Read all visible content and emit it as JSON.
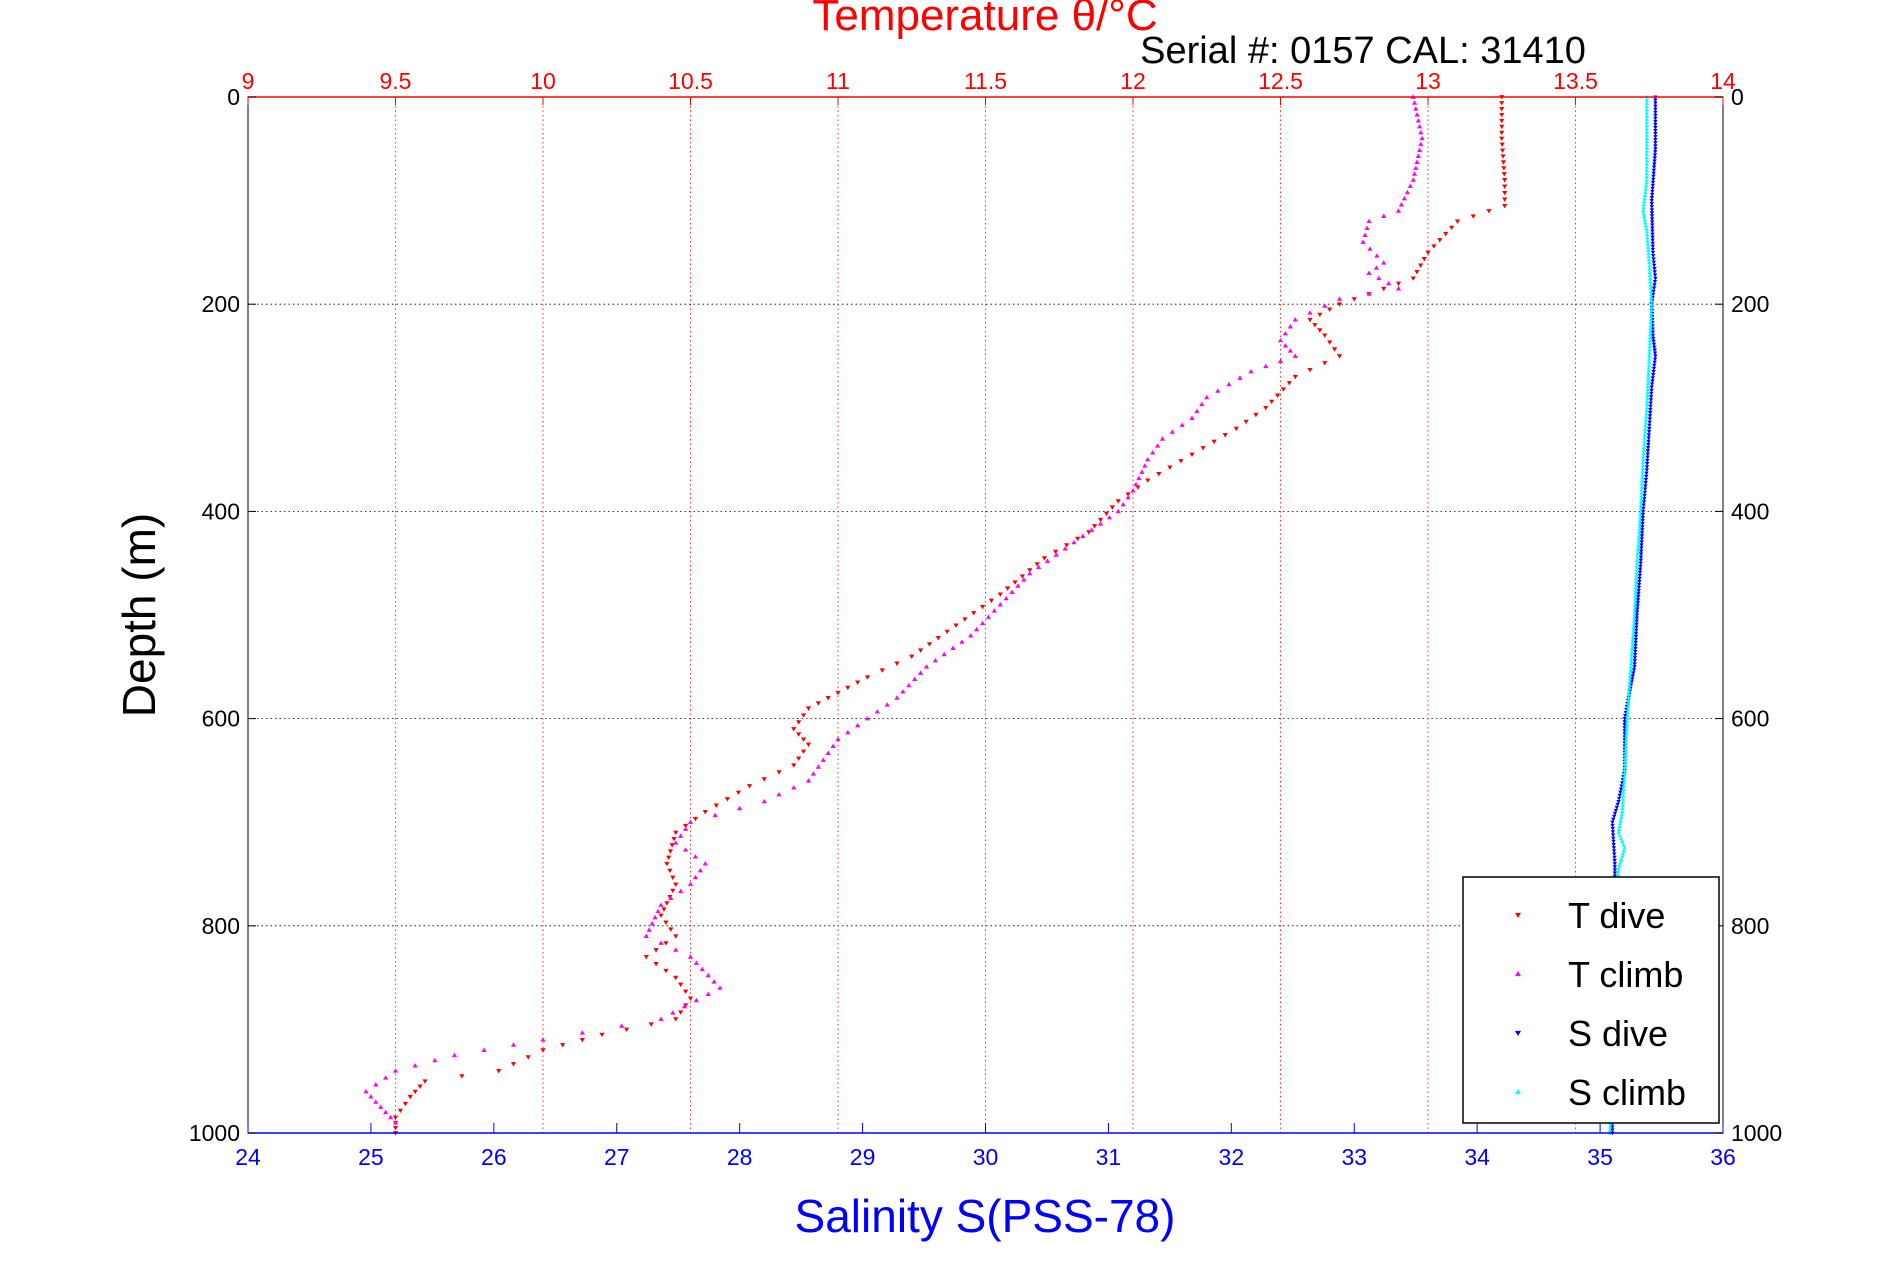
{
  "chart_data": {
    "type": "scatter",
    "title": "Temperature θ/°C",
    "subtitle": "Serial #: 0157  CAL: 31410",
    "ylabel": "Depth (m)",
    "xlabel": "Salinity S(PSS-78)",
    "y_reversed": true,
    "ylim": [
      0,
      1000
    ],
    "y_ticks": [
      "0",
      "200",
      "400",
      "600",
      "800",
      "1000"
    ],
    "temperature_axis": {
      "position": "top",
      "xlim": [
        9,
        14
      ],
      "ticks": [
        "9",
        "9.5",
        "10",
        "10.5",
        "11",
        "11.5",
        "12",
        "12.5",
        "13",
        "13.5",
        "14"
      ],
      "color": "#ff0000"
    },
    "salinity_axis": {
      "position": "bottom",
      "xlim": [
        24,
        36
      ],
      "ticks": [
        "24",
        "25",
        "26",
        "27",
        "28",
        "29",
        "30",
        "31",
        "32",
        "33",
        "34",
        "35",
        "36"
      ],
      "color": "#0000ff"
    },
    "grid": "dotted",
    "legend_position": "bottom-right",
    "series": [
      {
        "name": "T dive",
        "axis": "temperature",
        "marker": "down-triangle",
        "color": "#ff0000",
        "points": [
          [
            13.25,
            0
          ],
          [
            13.25,
            40
          ],
          [
            13.26,
            80
          ],
          [
            13.26,
            105
          ],
          [
            13.1,
            120
          ],
          [
            13.0,
            150
          ],
          [
            12.95,
            175
          ],
          [
            12.85,
            185
          ],
          [
            12.7,
            200
          ],
          [
            12.6,
            215
          ],
          [
            12.65,
            230
          ],
          [
            12.7,
            250
          ],
          [
            12.55,
            270
          ],
          [
            12.45,
            300
          ],
          [
            12.35,
            320
          ],
          [
            12.2,
            345
          ],
          [
            12.05,
            370
          ],
          [
            11.95,
            390
          ],
          [
            11.85,
            420
          ],
          [
            11.7,
            445
          ],
          [
            11.55,
            480
          ],
          [
            11.4,
            510
          ],
          [
            11.25,
            540
          ],
          [
            11.1,
            560
          ],
          [
            11.0,
            575
          ],
          [
            10.9,
            590
          ],
          [
            10.85,
            610
          ],
          [
            10.9,
            625
          ],
          [
            10.85,
            645
          ],
          [
            10.7,
            665
          ],
          [
            10.55,
            690
          ],
          [
            10.45,
            710
          ],
          [
            10.42,
            740
          ],
          [
            10.45,
            760
          ],
          [
            10.4,
            790
          ],
          [
            10.45,
            810
          ],
          [
            10.35,
            830
          ],
          [
            10.45,
            850
          ],
          [
            10.5,
            870
          ],
          [
            10.45,
            890
          ],
          [
            10.2,
            905
          ],
          [
            10.0,
            920
          ],
          [
            9.85,
            940
          ],
          [
            9.6,
            950
          ],
          [
            9.55,
            965
          ],
          [
            9.5,
            985
          ],
          [
            9.5,
            1000
          ]
        ]
      },
      {
        "name": "T climb",
        "axis": "temperature",
        "marker": "up-triangle",
        "color": "#ff00ff",
        "points": [
          [
            12.95,
            0
          ],
          [
            12.98,
            40
          ],
          [
            12.95,
            80
          ],
          [
            12.9,
            110
          ],
          [
            12.8,
            120
          ],
          [
            12.78,
            140
          ],
          [
            12.85,
            160
          ],
          [
            12.8,
            170
          ],
          [
            12.9,
            185
          ],
          [
            12.7,
            195
          ],
          [
            12.55,
            215
          ],
          [
            12.5,
            235
          ],
          [
            12.55,
            250
          ],
          [
            12.4,
            265
          ],
          [
            12.25,
            290
          ],
          [
            12.2,
            310
          ],
          [
            12.1,
            330
          ],
          [
            12.05,
            350
          ],
          [
            12.0,
            380
          ],
          [
            11.95,
            400
          ],
          [
            11.8,
            430
          ],
          [
            11.65,
            460
          ],
          [
            11.55,
            490
          ],
          [
            11.45,
            520
          ],
          [
            11.3,
            550
          ],
          [
            11.2,
            580
          ],
          [
            11.1,
            600
          ],
          [
            11.0,
            620
          ],
          [
            10.95,
            640
          ],
          [
            10.9,
            660
          ],
          [
            10.75,
            680
          ],
          [
            10.5,
            700
          ],
          [
            10.45,
            720
          ],
          [
            10.55,
            740
          ],
          [
            10.5,
            760
          ],
          [
            10.4,
            780
          ],
          [
            10.35,
            810
          ],
          [
            10.5,
            830
          ],
          [
            10.6,
            860
          ],
          [
            10.4,
            890
          ],
          [
            10.0,
            910
          ],
          [
            9.7,
            925
          ],
          [
            9.5,
            940
          ],
          [
            9.4,
            960
          ],
          [
            9.45,
            975
          ],
          [
            9.5,
            990
          ]
        ]
      },
      {
        "name": "S dive",
        "axis": "salinity",
        "marker": "down-triangle",
        "color": "#0000ff",
        "points": [
          [
            35.45,
            0
          ],
          [
            35.45,
            50
          ],
          [
            35.42,
            100
          ],
          [
            35.43,
            150
          ],
          [
            35.45,
            175
          ],
          [
            35.42,
            200
          ],
          [
            35.43,
            230
          ],
          [
            35.45,
            250
          ],
          [
            35.42,
            280
          ],
          [
            35.4,
            320
          ],
          [
            35.38,
            360
          ],
          [
            35.35,
            400
          ],
          [
            35.33,
            450
          ],
          [
            35.3,
            500
          ],
          [
            35.28,
            550
          ],
          [
            35.2,
            600
          ],
          [
            35.2,
            650
          ],
          [
            35.15,
            680
          ],
          [
            35.1,
            700
          ],
          [
            35.12,
            740
          ],
          [
            35.12,
            800
          ],
          [
            35.1,
            850
          ],
          [
            35.1,
            900
          ],
          [
            35.1,
            950
          ],
          [
            35.1,
            1000
          ]
        ]
      },
      {
        "name": "S climb",
        "axis": "salinity",
        "marker": "up-triangle",
        "color": "#00ffff",
        "points": [
          [
            35.38,
            0
          ],
          [
            35.38,
            40
          ],
          [
            35.38,
            80
          ],
          [
            35.35,
            110
          ],
          [
            35.38,
            130
          ],
          [
            35.4,
            160
          ],
          [
            35.42,
            200
          ],
          [
            35.4,
            250
          ],
          [
            35.38,
            300
          ],
          [
            35.35,
            350
          ],
          [
            35.33,
            400
          ],
          [
            35.3,
            450
          ],
          [
            35.28,
            500
          ],
          [
            35.25,
            550
          ],
          [
            35.22,
            600
          ],
          [
            35.2,
            650
          ],
          [
            35.18,
            690
          ],
          [
            35.15,
            710
          ],
          [
            35.2,
            725
          ],
          [
            35.15,
            745
          ],
          [
            35.12,
            780
          ],
          [
            35.1,
            850
          ],
          [
            35.1,
            900
          ],
          [
            35.1,
            950
          ],
          [
            35.08,
            1000
          ]
        ]
      }
    ]
  }
}
